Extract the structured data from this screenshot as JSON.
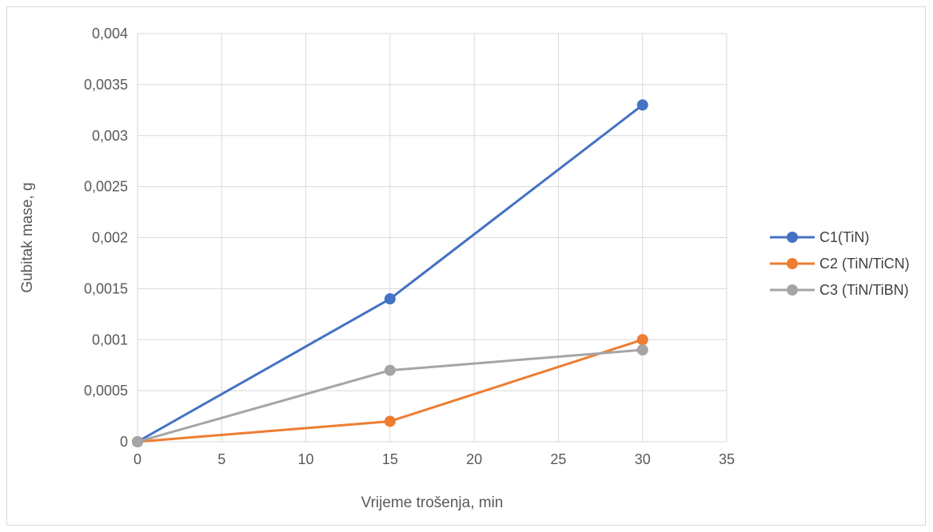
{
  "chart_data": {
    "type": "line",
    "xlabel": "Vrijeme trošenja, min",
    "ylabel": "Gubitak mase, g",
    "xlim": [
      0,
      35
    ],
    "ylim": [
      0,
      0.004
    ],
    "x_ticks": [
      "0",
      "5",
      "10",
      "15",
      "20",
      "25",
      "30",
      "35"
    ],
    "y_ticks": [
      "0",
      "0,0005",
      "0,001",
      "0,0015",
      "0,002",
      "0,0025",
      "0,003",
      "0,0035",
      "0,004"
    ],
    "grid": true,
    "legend_position": "right",
    "series": [
      {
        "name": "C1(TiN)",
        "color": "#4472c4",
        "x": [
          0,
          15,
          30
        ],
        "y": [
          0,
          0.0014,
          0.0033
        ]
      },
      {
        "name": "C2 (TiN/TiCN)",
        "color": "#ed7d31",
        "x": [
          0,
          15,
          30
        ],
        "y": [
          0,
          0.0002,
          0.001
        ]
      },
      {
        "name": "C3 (TiN/TiBN)",
        "color": "#a5a5a5",
        "x": [
          0,
          15,
          30
        ],
        "y": [
          0,
          0.0007,
          0.0009
        ]
      }
    ]
  }
}
